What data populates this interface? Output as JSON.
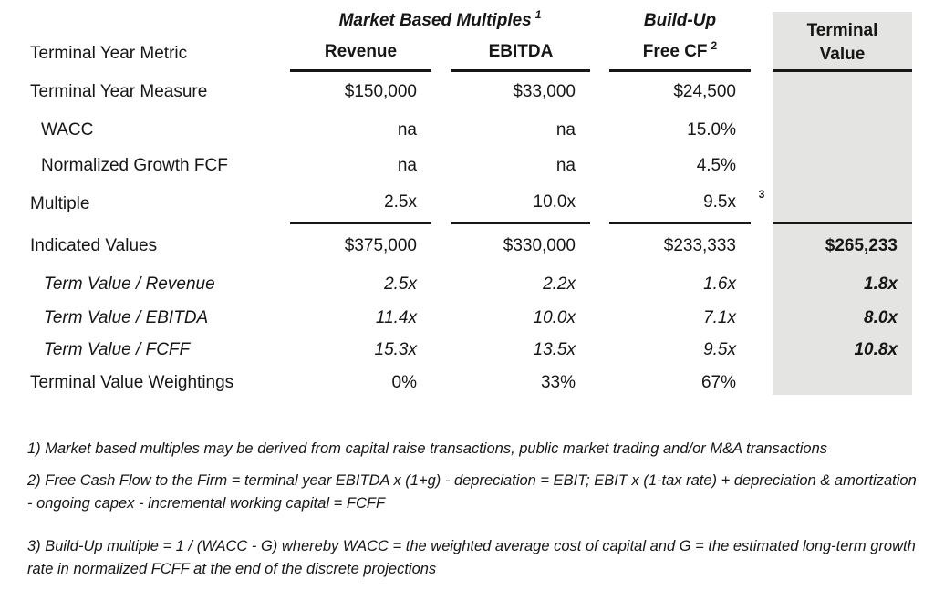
{
  "table": {
    "header": {
      "group_market": "Market Based Multiples",
      "group_market_sup": "1",
      "group_buildup": "Build-Up",
      "row_label": "Terminal Year Metric",
      "col_revenue": "Revenue",
      "col_ebitda": "EBITDA",
      "col_freecf": "Free CF",
      "col_freecf_sup": "2",
      "col_terminal_line1": "Terminal",
      "col_terminal_line2": "Value"
    },
    "rows": [
      {
        "label": "Terminal Year Measure",
        "revenue": "$150,000",
        "ebitda": "$33,000",
        "freecf": "$24,500",
        "terminal": ""
      },
      {
        "label": "WACC",
        "revenue": "na",
        "ebitda": "na",
        "freecf": "15.0%",
        "terminal": ""
      },
      {
        "label": "Normalized Growth FCF",
        "revenue": "na",
        "ebitda": "na",
        "freecf": "4.5%",
        "terminal": ""
      },
      {
        "label": "Multiple",
        "revenue": "2.5x",
        "ebitda": "10.0x",
        "freecf": "9.5x",
        "freecf_sup": "3",
        "terminal": ""
      },
      {
        "label": "Indicated Values",
        "revenue": "$375,000",
        "ebitda": "$330,000",
        "freecf": "$233,333",
        "terminal": "$265,233"
      },
      {
        "label": "Term Value / Revenue",
        "revenue": "2.5x",
        "ebitda": "2.2x",
        "freecf": "1.6x",
        "terminal": "1.8x"
      },
      {
        "label": "Term Value / EBITDA",
        "revenue": "11.4x",
        "ebitda": "10.0x",
        "freecf": "7.1x",
        "terminal": "8.0x"
      },
      {
        "label": "Term Value / FCFF",
        "revenue": "15.3x",
        "ebitda": "13.5x",
        "freecf": "9.5x",
        "terminal": "10.8x"
      },
      {
        "label": "Terminal Value Weightings",
        "revenue": "0%",
        "ebitda": "33%",
        "freecf": "67%",
        "terminal": ""
      }
    ]
  },
  "footnotes": [
    "1) Market based multiples may be derived from capital raise transactions, public market trading and/or M&A transactions",
    "2) Free Cash Flow to the Firm = terminal year EBITDA x (1+g) - depreciation = EBIT; EBIT x (1-tax rate) + depreciation & amortization - ongoing capex - incremental working capital = FCFF",
    "3) Build-Up multiple = 1 / (WACC - G) whereby WACC = the weighted average cost of capital and G = the estimated long-term growth rate in normalized FCFF at the end of the discrete projections"
  ],
  "colors": {
    "highlight": "#e4e4e2",
    "text": "#161616",
    "rule": "#161616"
  }
}
